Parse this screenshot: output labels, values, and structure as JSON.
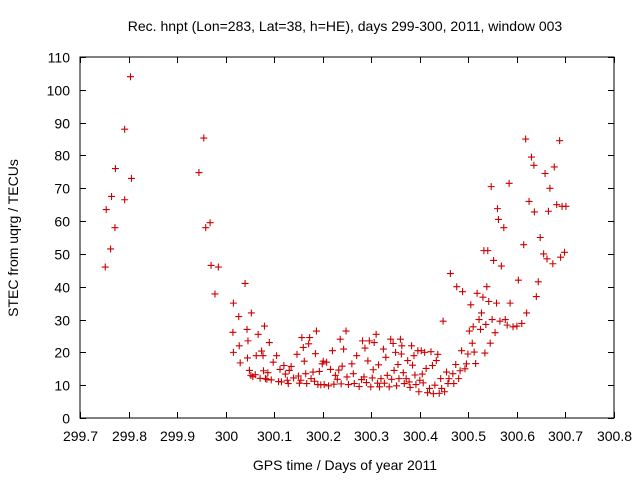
{
  "chart_data": {
    "type": "scatter",
    "title": "Rec. hnpt (Lon=283, Lat=38, h=HE), days 299-300, 2011, window 003",
    "xlabel": "GPS time / Days of year 2011",
    "ylabel": "STEC from uqrg / TECUs",
    "xlim": [
      299.7,
      300.8
    ],
    "ylim": [
      0,
      110
    ],
    "xticks": [
      299.7,
      299.8,
      299.9,
      300,
      300.1,
      300.2,
      300.3,
      300.4,
      300.5,
      300.6,
      300.7,
      300.8
    ],
    "xtick_labels": [
      "299.7",
      "299.8",
      "299.9",
      "300",
      "300.1",
      "300.2",
      "300.3",
      "300.4",
      "300.5",
      "300.6",
      "300.7",
      "300.8"
    ],
    "yticks": [
      0,
      10,
      20,
      30,
      40,
      50,
      60,
      70,
      80,
      90,
      100,
      110
    ],
    "ytick_labels": [
      "0",
      "10",
      "20",
      "30",
      "40",
      "50",
      "60",
      "70",
      "80",
      "90",
      "100",
      "110"
    ],
    "grid": false,
    "marker": "+",
    "color": "#cc0000",
    "series": [
      {
        "points": [
          [
            299.752,
            46
          ],
          [
            299.754,
            63.5
          ],
          [
            299.763,
            51.5
          ],
          [
            299.765,
            67.5
          ],
          [
            299.772,
            58
          ],
          [
            299.773,
            76
          ],
          [
            299.792,
            88
          ],
          [
            299.792,
            66.5
          ],
          [
            299.804,
            104
          ],
          [
            299.806,
            73
          ],
          [
            299.945,
            74.8
          ],
          [
            299.955,
            85.3
          ],
          [
            299.959,
            58
          ],
          [
            299.968,
            59.5
          ],
          [
            299.97,
            46.5
          ],
          [
            299.985,
            46
          ],
          [
            299.978,
            37.8
          ],
          [
            300.016,
            35
          ],
          [
            300.015,
            26.1
          ],
          [
            300.016,
            20
          ],
          [
            300.027,
            30.9
          ],
          [
            300.028,
            22
          ],
          [
            300.03,
            16.8
          ],
          [
            300.053,
            32
          ],
          [
            300.04,
            41
          ],
          [
            300.044,
            27
          ],
          [
            300.046,
            23.5
          ],
          [
            300.045,
            18.3
          ],
          [
            300.049,
            14.5
          ],
          [
            300.052,
            13
          ],
          [
            300.056,
            12.6
          ],
          [
            300.061,
            13.2
          ],
          [
            300.063,
            19
          ],
          [
            300.067,
            25.5
          ],
          [
            300.071,
            12.1
          ],
          [
            300.074,
            20.4
          ],
          [
            300.077,
            19
          ],
          [
            300.078,
            14.4
          ],
          [
            300.08,
            28
          ],
          [
            300.082,
            12
          ],
          [
            300.085,
            11.8
          ],
          [
            300.087,
            13.8
          ],
          [
            300.09,
            23
          ],
          [
            300.094,
            11.6
          ],
          [
            300.098,
            17
          ],
          [
            300.105,
            19
          ],
          [
            300.109,
            11.1
          ],
          [
            300.112,
            14.8
          ],
          [
            300.115,
            11
          ],
          [
            300.12,
            16
          ],
          [
            300.123,
            13.4
          ],
          [
            300.127,
            11.5
          ],
          [
            300.129,
            10.5
          ],
          [
            300.131,
            14.5
          ],
          [
            300.135,
            15.7
          ],
          [
            300.14,
            12.2
          ],
          [
            300.147,
            19.4
          ],
          [
            300.15,
            12.8
          ],
          [
            300.152,
            10.6
          ],
          [
            300.155,
            11.5
          ],
          [
            300.157,
            24.5
          ],
          [
            300.16,
            21.5
          ],
          [
            300.162,
            17.3
          ],
          [
            300.165,
            13.5
          ],
          [
            300.167,
            10.5
          ],
          [
            300.171,
            22.6
          ],
          [
            300.173,
            24.5
          ],
          [
            300.176,
            12
          ],
          [
            300.18,
            14
          ],
          [
            300.183,
            11.2
          ],
          [
            300.185,
            19.6
          ],
          [
            300.187,
            26.5
          ],
          [
            300.19,
            10.2
          ],
          [
            300.193,
            14.2
          ],
          [
            300.196,
            10.1
          ],
          [
            300.199,
            16.5
          ],
          [
            300.201,
            17.3
          ],
          [
            300.203,
            10.2
          ],
          [
            300.208,
            17
          ],
          [
            300.212,
            9.8
          ],
          [
            300.216,
            14.8
          ],
          [
            300.22,
            20.5
          ],
          [
            300.223,
            10.3
          ],
          [
            300.226,
            13
          ],
          [
            300.23,
            11.8
          ],
          [
            300.233,
            14.6
          ],
          [
            300.236,
            24
          ],
          [
            300.238,
            10.4
          ],
          [
            300.24,
            15.8
          ],
          [
            300.243,
            21
          ],
          [
            300.248,
            26.5
          ],
          [
            300.25,
            12.5
          ],
          [
            300.253,
            10.2
          ],
          [
            300.26,
            16.5
          ],
          [
            300.263,
            13.5
          ],
          [
            300.265,
            10.5
          ],
          [
            300.27,
            19
          ],
          [
            300.275,
            9.6
          ],
          [
            300.28,
            11.7
          ],
          [
            300.282,
            23.5
          ],
          [
            300.285,
            12.5
          ],
          [
            300.287,
            21.3
          ],
          [
            300.29,
            10.8
          ],
          [
            300.293,
            17.4
          ],
          [
            300.296,
            23.5
          ],
          [
            300.299,
            9.5
          ],
          [
            300.302,
            12.2
          ],
          [
            300.304,
            14.7
          ],
          [
            300.306,
            23
          ],
          [
            300.31,
            25.5
          ],
          [
            300.313,
            10.6
          ],
          [
            300.315,
            16.2
          ],
          [
            300.317,
            9.5
          ],
          [
            300.32,
            12
          ],
          [
            300.325,
            21
          ],
          [
            300.327,
            10.6
          ],
          [
            300.33,
            18.5
          ],
          [
            300.333,
            13
          ],
          [
            300.337,
            9.5
          ],
          [
            300.34,
            24
          ],
          [
            300.342,
            11.8
          ],
          [
            300.345,
            22.7
          ],
          [
            300.347,
            14.5
          ],
          [
            300.35,
            20
          ],
          [
            300.352,
            9.8
          ],
          [
            300.355,
            16.3
          ],
          [
            300.357,
            12
          ],
          [
            300.36,
            24
          ],
          [
            300.362,
            19.5
          ],
          [
            300.363,
            22
          ],
          [
            300.366,
            13.8
          ],
          [
            300.368,
            10.5
          ],
          [
            300.372,
            12
          ],
          [
            300.375,
            17.5
          ],
          [
            300.378,
            11
          ],
          [
            300.38,
            9.3
          ],
          [
            300.383,
            22
          ],
          [
            300.385,
            16.1
          ],
          [
            300.388,
            19
          ],
          [
            300.39,
            13.1
          ],
          [
            300.392,
            10.2
          ],
          [
            300.396,
            20.5
          ],
          [
            300.398,
            8
          ],
          [
            300.4,
            11.5
          ],
          [
            300.403,
            20.5
          ],
          [
            300.405,
            13.4
          ],
          [
            300.407,
            10.7
          ],
          [
            300.41,
            20
          ],
          [
            300.413,
            15.1
          ],
          [
            300.416,
            7.7
          ],
          [
            300.42,
            9
          ],
          [
            300.423,
            20.2
          ],
          [
            300.426,
            16
          ],
          [
            300.428,
            7.4
          ],
          [
            300.431,
            10
          ],
          [
            300.434,
            17.5
          ],
          [
            300.437,
            19.4
          ],
          [
            300.44,
            7.5
          ],
          [
            300.443,
            12
          ],
          [
            300.445,
            9
          ],
          [
            300.448,
            29.5
          ],
          [
            300.451,
            8
          ],
          [
            300.455,
            14
          ],
          [
            300.458,
            10.5
          ],
          [
            300.46,
            12
          ],
          [
            300.463,
            44
          ],
          [
            300.468,
            13.5
          ],
          [
            300.47,
            10.5
          ],
          [
            300.474,
            16.3
          ],
          [
            300.476,
            40
          ],
          [
            300.48,
            12
          ],
          [
            300.483,
            14.4
          ],
          [
            300.486,
            20.5
          ],
          [
            300.488,
            38.5
          ],
          [
            300.493,
            15
          ],
          [
            300.496,
            16.5
          ],
          [
            300.499,
            19.5
          ],
          [
            300.502,
            26.5
          ],
          [
            300.505,
            34.5
          ],
          [
            300.508,
            22.8
          ],
          [
            300.51,
            27.8
          ],
          [
            300.512,
            20.1
          ],
          [
            300.515,
            16.6
          ],
          [
            300.518,
            38
          ],
          [
            300.522,
            30
          ],
          [
            300.525,
            27
          ],
          [
            300.527,
            32
          ],
          [
            300.53,
            36.8
          ],
          [
            300.532,
            51
          ],
          [
            300.534,
            19.8
          ],
          [
            300.536,
            28.5
          ],
          [
            300.538,
            40
          ],
          [
            300.54,
            51
          ],
          [
            300.542,
            35.5
          ],
          [
            300.545,
            22.8
          ],
          [
            300.547,
            70.5
          ],
          [
            300.549,
            30
          ],
          [
            300.552,
            48
          ],
          [
            300.555,
            26
          ],
          [
            300.558,
            35
          ],
          [
            300.56,
            63.8
          ],
          [
            300.562,
            60.5
          ],
          [
            300.565,
            29.5
          ],
          [
            300.568,
            46.3
          ],
          [
            300.573,
            58
          ],
          [
            300.576,
            30
          ],
          [
            300.58,
            28.3
          ],
          [
            300.584,
            71.5
          ],
          [
            300.586,
            35
          ],
          [
            300.592,
            27.8
          ],
          [
            300.6,
            28
          ],
          [
            300.603,
            42
          ],
          [
            300.61,
            28.8
          ],
          [
            300.614,
            52.8
          ],
          [
            300.62,
            32
          ],
          [
            300.618,
            85
          ],
          [
            300.625,
            66
          ],
          [
            300.63,
            79.5
          ],
          [
            300.635,
            77
          ],
          [
            300.636,
            62.8
          ],
          [
            300.64,
            37
          ],
          [
            300.644,
            41.5
          ],
          [
            300.648,
            55
          ],
          [
            300.655,
            50
          ],
          [
            300.658,
            74.5
          ],
          [
            300.662,
            48.5
          ],
          [
            300.665,
            63
          ],
          [
            300.668,
            70
          ],
          [
            300.674,
            47
          ],
          [
            300.677,
            76.5
          ],
          [
            300.682,
            65
          ],
          [
            300.688,
            84.5
          ],
          [
            300.69,
            49
          ],
          [
            300.693,
            64.5
          ],
          [
            300.698,
            50.5
          ],
          [
            300.701,
            64.5
          ]
        ]
      }
    ]
  }
}
